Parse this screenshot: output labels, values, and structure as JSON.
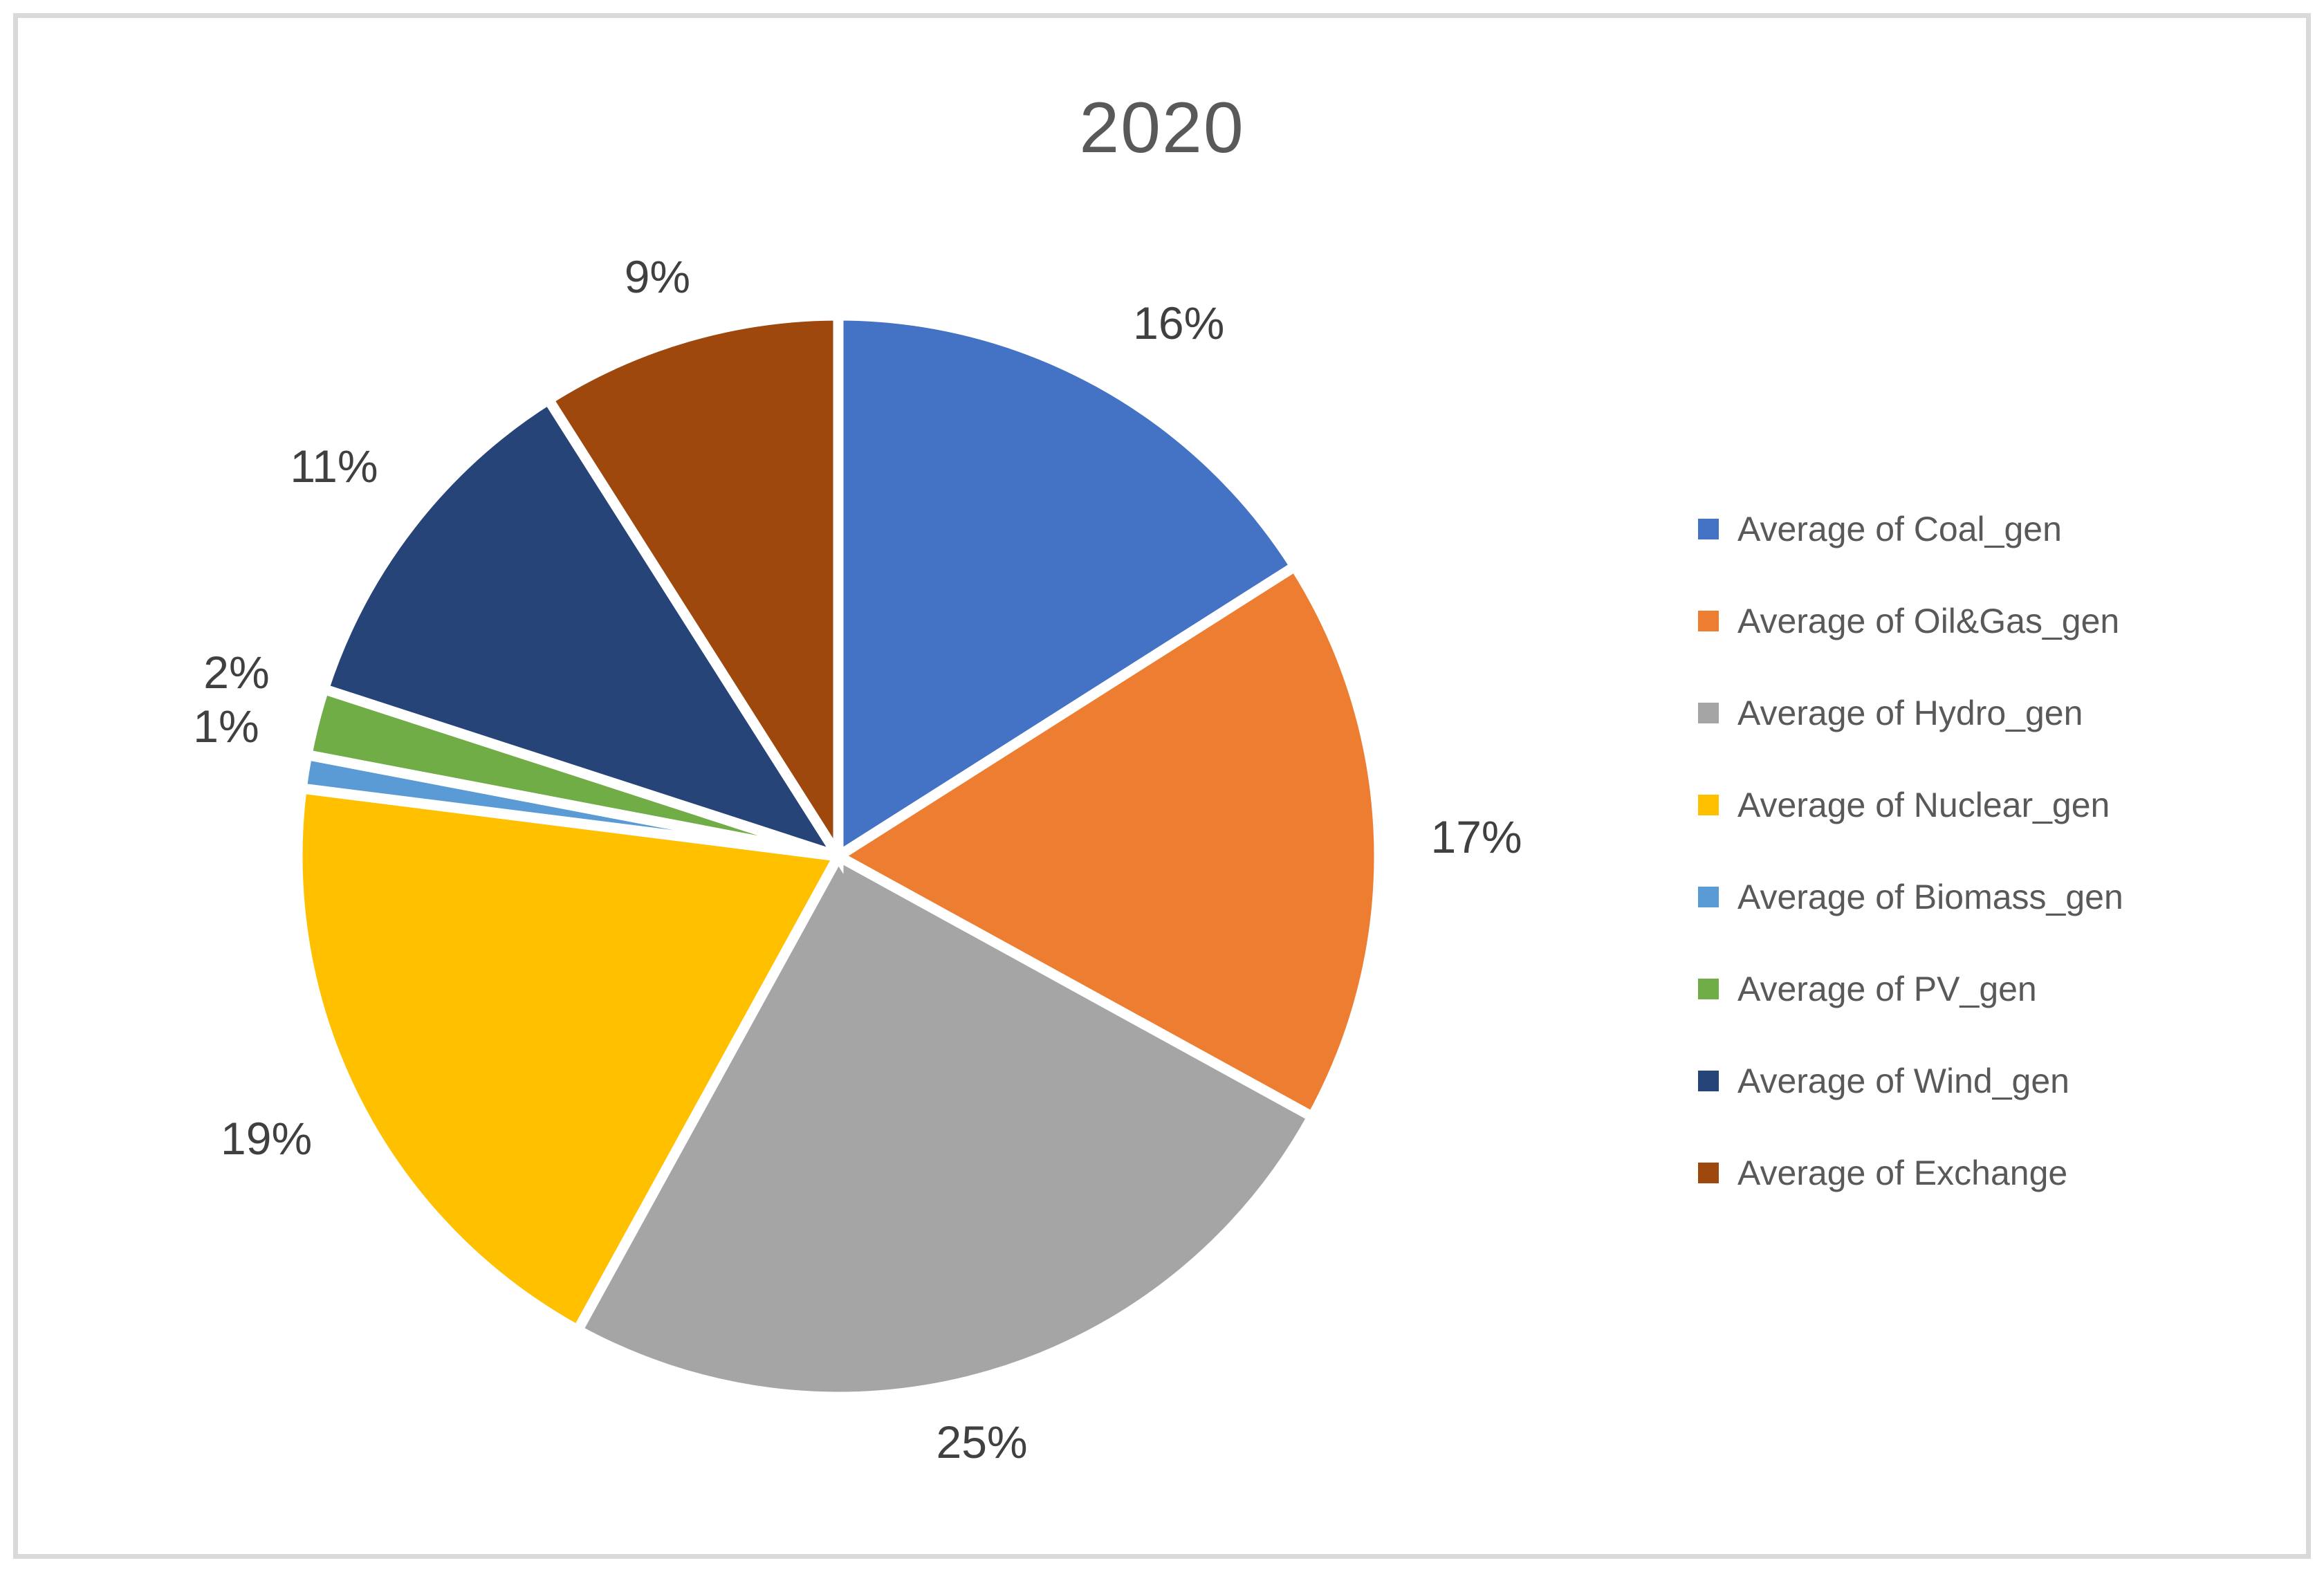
{
  "chart_data": {
    "type": "pie",
    "title": "2020",
    "legend_position": "right",
    "rotation_start": "top",
    "direction": "clockwise",
    "slices": [
      {
        "legend_label": "Average of Coal_gen",
        "value_pct": 16,
        "display_label": "16%",
        "color": "#4472C4"
      },
      {
        "legend_label": "Average of Oil&Gas_gen",
        "value_pct": 17,
        "display_label": "17%",
        "color": "#ED7D31"
      },
      {
        "legend_label": "Average of Hydro_gen",
        "value_pct": 25,
        "display_label": "25%",
        "color": "#A5A5A5"
      },
      {
        "legend_label": "Average of Nuclear_gen",
        "value_pct": 19,
        "display_label": "19%",
        "color": "#FFC000"
      },
      {
        "legend_label": "Average of Biomass_gen",
        "value_pct": 1,
        "display_label": "1%",
        "color": "#5B9BD5"
      },
      {
        "legend_label": "Average of PV_gen",
        "value_pct": 2,
        "display_label": "2%",
        "color": "#70AD47"
      },
      {
        "legend_label": "Average of Wind_gen",
        "value_pct": 11,
        "display_label": "11%",
        "color": "#264478"
      },
      {
        "legend_label": "Average of Exchange",
        "value_pct": 9,
        "display_label": "9%",
        "color": "#9E480E"
      }
    ],
    "separator_color": "#FFFFFF"
  },
  "frame": {
    "border_color": "#D9D9D9",
    "background_color": "#FFFFFF"
  },
  "text_colors": {
    "title": "#595959",
    "data_labels": "#404040",
    "legend": "#595959"
  }
}
